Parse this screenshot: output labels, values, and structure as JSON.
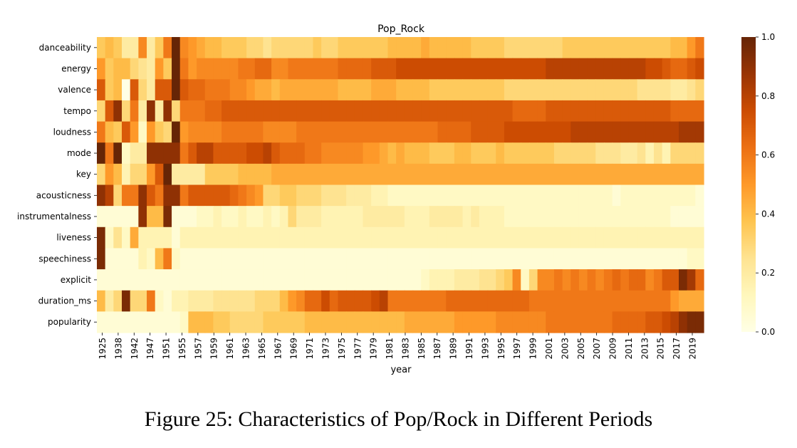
{
  "caption": "Figure 25: Characteristics of Pop/Rock in Different Periods",
  "chart_data": {
    "type": "heatmap",
    "title": "Pop_Rock",
    "xlabel": "year",
    "ylabel": "",
    "rows": [
      "danceability",
      "energy",
      "valence",
      "tempo",
      "loudness",
      "mode",
      "key",
      "acousticness",
      "instrumentalness",
      "liveness",
      "speechiness",
      "explicit",
      "duration_ms",
      "popularity"
    ],
    "x_tick_labels": [
      "1925",
      "1938",
      "1942",
      "1947",
      "1951",
      "1955",
      "1957",
      "1959",
      "1961",
      "1963",
      "1965",
      "1967",
      "1969",
      "1971",
      "1973",
      "1975",
      "1977",
      "1979",
      "1981",
      "1983",
      "1985",
      "1987",
      "1989",
      "1991",
      "1993",
      "1995",
      "1997",
      "1999",
      "2001",
      "2003",
      "2005",
      "2007",
      "2009",
      "2011",
      "2013",
      "2015",
      "2017",
      "2019"
    ],
    "colorbar": {
      "min": 0.0,
      "max": 1.0,
      "ticks": [
        "0.0",
        "0.2",
        "0.4",
        "0.6",
        "0.8",
        "1.0"
      ],
      "colormap": "YlOrBr"
    },
    "legend": "colorbar-right",
    "grid": false,
    "note_columns": "73 columns, one per plotted year; values estimated from colour",
    "values": [
      [
        0.35,
        0.4,
        0.35,
        0.2,
        0.2,
        0.55,
        0.2,
        0.35,
        0.6,
        1.0,
        0.55,
        0.5,
        0.45,
        0.4,
        0.4,
        0.35,
        0.35,
        0.35,
        0.3,
        0.3,
        0.25,
        0.3,
        0.3,
        0.3,
        0.3,
        0.3,
        0.35,
        0.3,
        0.3,
        0.35,
        0.35,
        0.35,
        0.35,
        0.35,
        0.35,
        0.4,
        0.4,
        0.4,
        0.4,
        0.45,
        0.4,
        0.4,
        0.4,
        0.4,
        0.4,
        0.35,
        0.35,
        0.35,
        0.35,
        0.3,
        0.3,
        0.3,
        0.3,
        0.3,
        0.3,
        0.3,
        0.35,
        0.35,
        0.35,
        0.35,
        0.35,
        0.35,
        0.35,
        0.35,
        0.35,
        0.35,
        0.35,
        0.35,
        0.35,
        0.4,
        0.4,
        0.5,
        0.6
      ],
      [
        0.5,
        0.35,
        0.4,
        0.4,
        0.3,
        0.25,
        0.2,
        0.5,
        0.35,
        1.0,
        0.6,
        0.5,
        0.55,
        0.55,
        0.55,
        0.55,
        0.55,
        0.6,
        0.6,
        0.65,
        0.65,
        0.55,
        0.55,
        0.6,
        0.6,
        0.6,
        0.6,
        0.6,
        0.6,
        0.65,
        0.65,
        0.65,
        0.65,
        0.7,
        0.7,
        0.7,
        0.75,
        0.75,
        0.75,
        0.75,
        0.75,
        0.75,
        0.75,
        0.75,
        0.75,
        0.75,
        0.75,
        0.75,
        0.75,
        0.75,
        0.75,
        0.75,
        0.75,
        0.75,
        0.8,
        0.8,
        0.8,
        0.8,
        0.8,
        0.8,
        0.8,
        0.8,
        0.8,
        0.8,
        0.8,
        0.8,
        0.75,
        0.75,
        0.7,
        0.65,
        0.65,
        0.7,
        0.75
      ],
      [
        0.7,
        0.35,
        0.4,
        0.0,
        0.7,
        0.3,
        0.2,
        0.7,
        0.7,
        1.0,
        0.7,
        0.65,
        0.65,
        0.6,
        0.6,
        0.6,
        0.55,
        0.55,
        0.5,
        0.45,
        0.45,
        0.4,
        0.45,
        0.45,
        0.45,
        0.45,
        0.45,
        0.45,
        0.45,
        0.4,
        0.4,
        0.4,
        0.4,
        0.45,
        0.45,
        0.45,
        0.4,
        0.4,
        0.4,
        0.4,
        0.35,
        0.35,
        0.35,
        0.35,
        0.35,
        0.35,
        0.35,
        0.35,
        0.35,
        0.3,
        0.3,
        0.3,
        0.3,
        0.3,
        0.3,
        0.3,
        0.3,
        0.3,
        0.3,
        0.3,
        0.3,
        0.3,
        0.3,
        0.3,
        0.3,
        0.25,
        0.25,
        0.25,
        0.25,
        0.2,
        0.2,
        0.25,
        0.3
      ],
      [
        0.3,
        0.7,
        0.9,
        0.3,
        0.6,
        0.2,
        0.9,
        0.2,
        0.9,
        0.3,
        0.6,
        0.6,
        0.6,
        0.65,
        0.65,
        0.7,
        0.7,
        0.7,
        0.7,
        0.7,
        0.7,
        0.7,
        0.7,
        0.7,
        0.7,
        0.7,
        0.7,
        0.7,
        0.7,
        0.7,
        0.7,
        0.7,
        0.7,
        0.7,
        0.7,
        0.7,
        0.7,
        0.7,
        0.7,
        0.7,
        0.7,
        0.7,
        0.7,
        0.7,
        0.7,
        0.7,
        0.7,
        0.7,
        0.7,
        0.7,
        0.65,
        0.65,
        0.65,
        0.65,
        0.7,
        0.7,
        0.7,
        0.7,
        0.7,
        0.7,
        0.7,
        0.7,
        0.7,
        0.7,
        0.7,
        0.7,
        0.7,
        0.7,
        0.7,
        0.65,
        0.65,
        0.65,
        0.65
      ],
      [
        0.6,
        0.4,
        0.35,
        0.7,
        0.5,
        0.1,
        0.5,
        0.35,
        0.3,
        1.0,
        0.5,
        0.55,
        0.55,
        0.55,
        0.55,
        0.6,
        0.6,
        0.6,
        0.6,
        0.6,
        0.55,
        0.55,
        0.55,
        0.55,
        0.6,
        0.6,
        0.6,
        0.6,
        0.6,
        0.6,
        0.6,
        0.6,
        0.6,
        0.6,
        0.6,
        0.6,
        0.6,
        0.6,
        0.6,
        0.6,
        0.6,
        0.65,
        0.65,
        0.65,
        0.65,
        0.7,
        0.7,
        0.7,
        0.7,
        0.75,
        0.75,
        0.75,
        0.75,
        0.75,
        0.75,
        0.75,
        0.75,
        0.8,
        0.8,
        0.8,
        0.8,
        0.8,
        0.8,
        0.8,
        0.8,
        0.8,
        0.8,
        0.8,
        0.8,
        0.8,
        0.85,
        0.85,
        0.85
      ],
      [
        1.0,
        0.6,
        1.0,
        0.1,
        0.2,
        0.2,
        0.9,
        0.9,
        0.9,
        0.9,
        0.6,
        0.7,
        0.8,
        0.8,
        0.7,
        0.7,
        0.7,
        0.7,
        0.75,
        0.75,
        0.8,
        0.7,
        0.65,
        0.65,
        0.65,
        0.6,
        0.6,
        0.55,
        0.55,
        0.55,
        0.55,
        0.55,
        0.5,
        0.5,
        0.45,
        0.4,
        0.45,
        0.4,
        0.4,
        0.4,
        0.35,
        0.35,
        0.35,
        0.4,
        0.4,
        0.35,
        0.35,
        0.35,
        0.4,
        0.35,
        0.35,
        0.35,
        0.35,
        0.35,
        0.35,
        0.3,
        0.3,
        0.3,
        0.3,
        0.3,
        0.25,
        0.25,
        0.25,
        0.2,
        0.2,
        0.25,
        0.15,
        0.25,
        0.15,
        0.3,
        0.3,
        0.3,
        0.3
      ],
      [
        0.3,
        0.5,
        0.4,
        0.15,
        0.3,
        0.3,
        0.5,
        0.7,
        1.0,
        0.2,
        0.2,
        0.2,
        0.2,
        0.35,
        0.35,
        0.35,
        0.35,
        0.4,
        0.4,
        0.4,
        0.4,
        0.45,
        0.45,
        0.45,
        0.45,
        0.45,
        0.45,
        0.45,
        0.45,
        0.45,
        0.45,
        0.45,
        0.45,
        0.45,
        0.45,
        0.45,
        0.45,
        0.45,
        0.45,
        0.45,
        0.45,
        0.45,
        0.45,
        0.45,
        0.45,
        0.45,
        0.45,
        0.45,
        0.45,
        0.45,
        0.45,
        0.45,
        0.45,
        0.45,
        0.45,
        0.45,
        0.45,
        0.45,
        0.45,
        0.45,
        0.45,
        0.45,
        0.45,
        0.45,
        0.45,
        0.45,
        0.45,
        0.45,
        0.45,
        0.45,
        0.45,
        0.45,
        0.45
      ],
      [
        0.9,
        0.8,
        0.3,
        0.6,
        0.6,
        0.9,
        0.7,
        0.6,
        0.9,
        0.9,
        0.6,
        0.7,
        0.7,
        0.7,
        0.7,
        0.7,
        0.65,
        0.6,
        0.55,
        0.5,
        0.3,
        0.3,
        0.35,
        0.35,
        0.3,
        0.3,
        0.3,
        0.25,
        0.25,
        0.25,
        0.2,
        0.2,
        0.2,
        0.15,
        0.15,
        0.1,
        0.1,
        0.1,
        0.1,
        0.1,
        0.1,
        0.1,
        0.1,
        0.1,
        0.1,
        0.1,
        0.1,
        0.1,
        0.1,
        0.1,
        0.1,
        0.1,
        0.1,
        0.1,
        0.1,
        0.1,
        0.1,
        0.1,
        0.1,
        0.1,
        0.1,
        0.1,
        0.05,
        0.1,
        0.1,
        0.1,
        0.1,
        0.1,
        0.1,
        0.1,
        0.1,
        0.1,
        0.05
      ],
      [
        0.05,
        0.05,
        0.05,
        0.05,
        0.05,
        0.9,
        0.4,
        0.4,
        0.95,
        0.05,
        0.05,
        0.05,
        0.1,
        0.1,
        0.15,
        0.1,
        0.1,
        0.15,
        0.1,
        0.1,
        0.15,
        0.1,
        0.15,
        0.3,
        0.2,
        0.2,
        0.2,
        0.15,
        0.15,
        0.15,
        0.15,
        0.15,
        0.2,
        0.2,
        0.2,
        0.2,
        0.2,
        0.15,
        0.15,
        0.15,
        0.2,
        0.2,
        0.2,
        0.2,
        0.15,
        0.2,
        0.15,
        0.15,
        0.15,
        0.1,
        0.1,
        0.1,
        0.1,
        0.1,
        0.1,
        0.1,
        0.1,
        0.1,
        0.1,
        0.1,
        0.1,
        0.1,
        0.1,
        0.1,
        0.1,
        0.1,
        0.1,
        0.1,
        0.1,
        0.05,
        0.05,
        0.05,
        0.05
      ],
      [
        0.95,
        0.1,
        0.25,
        0.1,
        0.45,
        0.15,
        0.15,
        0.15,
        0.15,
        0.05,
        0.15,
        0.15,
        0.15,
        0.15,
        0.15,
        0.15,
        0.15,
        0.15,
        0.15,
        0.15,
        0.15,
        0.15,
        0.15,
        0.15,
        0.15,
        0.15,
        0.15,
        0.15,
        0.15,
        0.15,
        0.15,
        0.15,
        0.15,
        0.15,
        0.15,
        0.15,
        0.15,
        0.15,
        0.15,
        0.15,
        0.15,
        0.15,
        0.15,
        0.15,
        0.15,
        0.15,
        0.15,
        0.15,
        0.15,
        0.15,
        0.15,
        0.15,
        0.15,
        0.15,
        0.15,
        0.15,
        0.15,
        0.15,
        0.15,
        0.15,
        0.15,
        0.15,
        0.15,
        0.15,
        0.15,
        0.15,
        0.15,
        0.15,
        0.15,
        0.15,
        0.15,
        0.15,
        0.15
      ],
      [
        0.95,
        0.05,
        0.05,
        0.05,
        0.05,
        0.15,
        0.1,
        0.4,
        0.6,
        0.1,
        0.05,
        0.05,
        0.05,
        0.05,
        0.05,
        0.05,
        0.05,
        0.05,
        0.05,
        0.05,
        0.05,
        0.05,
        0.05,
        0.05,
        0.05,
        0.05,
        0.05,
        0.05,
        0.05,
        0.05,
        0.05,
        0.05,
        0.05,
        0.05,
        0.05,
        0.05,
        0.05,
        0.05,
        0.05,
        0.05,
        0.05,
        0.05,
        0.05,
        0.05,
        0.05,
        0.05,
        0.05,
        0.05,
        0.05,
        0.05,
        0.05,
        0.05,
        0.05,
        0.05,
        0.05,
        0.05,
        0.05,
        0.05,
        0.05,
        0.05,
        0.05,
        0.05,
        0.05,
        0.05,
        0.05,
        0.05,
        0.05,
        0.05,
        0.05,
        0.05,
        0.05,
        0.1,
        0.1
      ],
      [
        0.05,
        0.05,
        0.05,
        0.05,
        0.05,
        0.05,
        0.05,
        0.05,
        0.05,
        0.05,
        0.05,
        0.05,
        0.05,
        0.05,
        0.05,
        0.05,
        0.05,
        0.05,
        0.05,
        0.05,
        0.05,
        0.05,
        0.05,
        0.05,
        0.05,
        0.05,
        0.05,
        0.05,
        0.05,
        0.05,
        0.05,
        0.05,
        0.05,
        0.05,
        0.05,
        0.05,
        0.05,
        0.05,
        0.05,
        0.1,
        0.15,
        0.15,
        0.15,
        0.2,
        0.2,
        0.2,
        0.25,
        0.25,
        0.3,
        0.35,
        0.55,
        0.1,
        0.3,
        0.55,
        0.55,
        0.6,
        0.55,
        0.6,
        0.55,
        0.6,
        0.55,
        0.6,
        0.65,
        0.6,
        0.65,
        0.65,
        0.55,
        0.6,
        0.7,
        0.7,
        0.95,
        0.85,
        0.65
      ],
      [
        0.4,
        0.2,
        0.3,
        0.95,
        0.3,
        0.3,
        0.6,
        0.1,
        0.05,
        0.15,
        0.15,
        0.2,
        0.2,
        0.2,
        0.25,
        0.25,
        0.25,
        0.25,
        0.25,
        0.3,
        0.3,
        0.3,
        0.4,
        0.5,
        0.55,
        0.65,
        0.65,
        0.75,
        0.65,
        0.7,
        0.7,
        0.7,
        0.7,
        0.75,
        0.8,
        0.6,
        0.6,
        0.6,
        0.6,
        0.6,
        0.6,
        0.6,
        0.65,
        0.65,
        0.65,
        0.65,
        0.65,
        0.65,
        0.65,
        0.65,
        0.65,
        0.65,
        0.6,
        0.6,
        0.6,
        0.6,
        0.6,
        0.6,
        0.6,
        0.6,
        0.6,
        0.6,
        0.6,
        0.6,
        0.6,
        0.6,
        0.6,
        0.6,
        0.6,
        0.5,
        0.45,
        0.45,
        0.45
      ],
      [
        0.05,
        0.05,
        0.05,
        0.05,
        0.05,
        0.05,
        0.05,
        0.05,
        0.05,
        0.05,
        0.1,
        0.4,
        0.4,
        0.4,
        0.35,
        0.35,
        0.3,
        0.3,
        0.3,
        0.3,
        0.35,
        0.35,
        0.35,
        0.35,
        0.35,
        0.4,
        0.4,
        0.4,
        0.4,
        0.4,
        0.4,
        0.4,
        0.4,
        0.4,
        0.4,
        0.4,
        0.4,
        0.45,
        0.45,
        0.45,
        0.45,
        0.45,
        0.45,
        0.5,
        0.5,
        0.5,
        0.5,
        0.5,
        0.55,
        0.55,
        0.55,
        0.55,
        0.55,
        0.55,
        0.6,
        0.6,
        0.6,
        0.6,
        0.6,
        0.6,
        0.6,
        0.6,
        0.65,
        0.65,
        0.65,
        0.65,
        0.7,
        0.7,
        0.75,
        0.8,
        0.9,
        0.95,
        0.95
      ]
    ]
  }
}
